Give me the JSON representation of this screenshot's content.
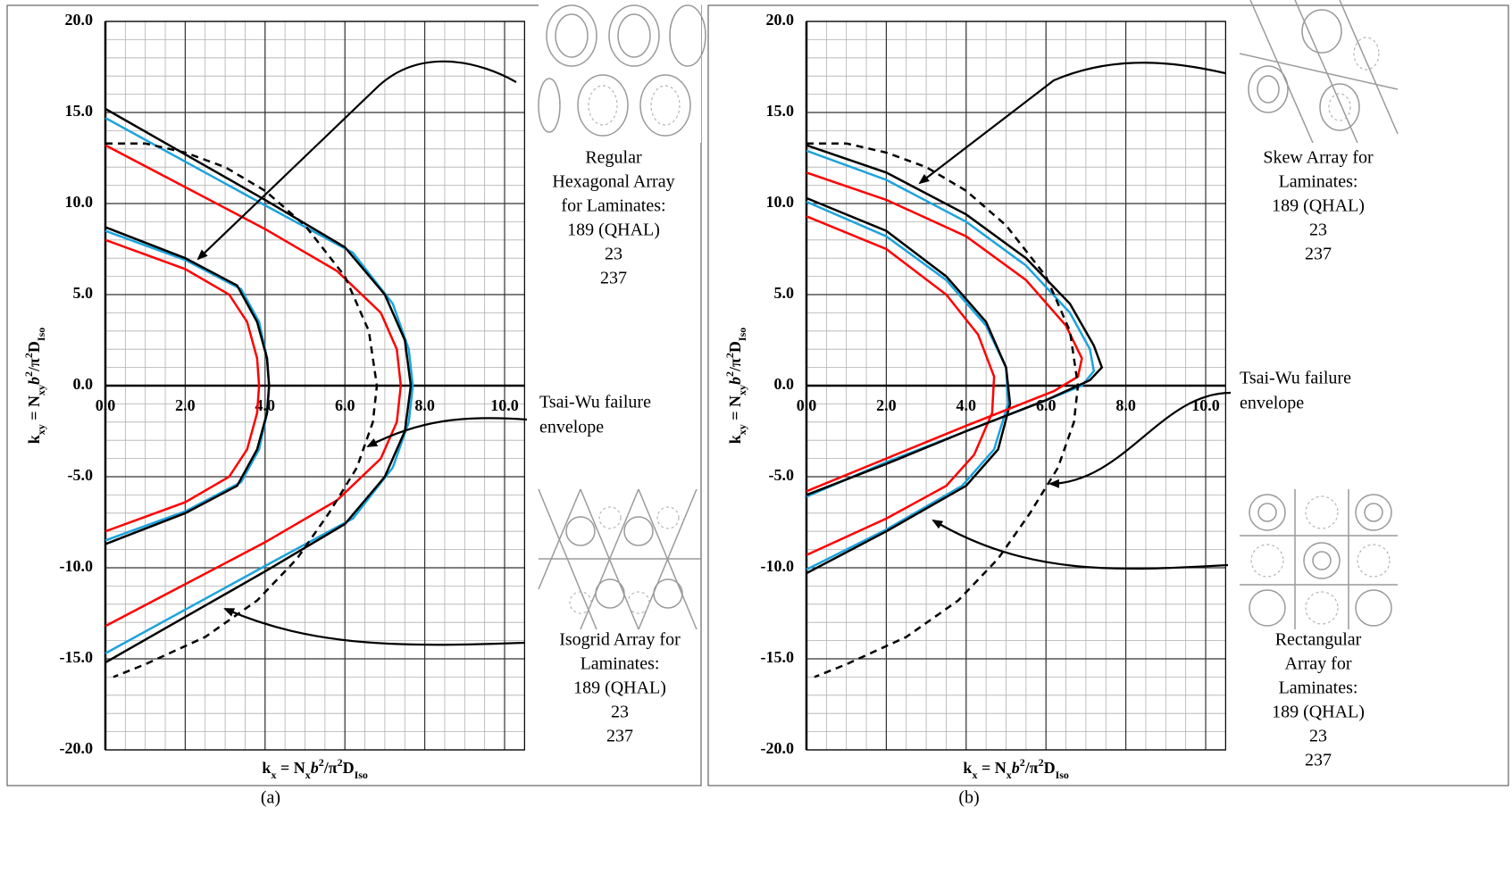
{
  "chart_data": [
    {
      "type": "line",
      "caption": "(a)",
      "xlabel": [
        "k",
        "x",
        " = N",
        "x",
        "b",
        "2",
        "/π",
        "2",
        "D",
        "Iso"
      ],
      "ylabel": [
        "k",
        "xy",
        " = N",
        "xy",
        "b",
        "2",
        "/π",
        "2",
        "D",
        "Iso"
      ],
      "xlim": [
        0,
        10.5
      ],
      "ylim": [
        -20,
        20
      ],
      "xticks": [
        {
          "value": 0,
          "label": "0.0"
        },
        {
          "value": 2,
          "label": "2.0"
        },
        {
          "value": 4,
          "label": "4.0"
        },
        {
          "value": 6,
          "label": "6.0"
        },
        {
          "value": 8,
          "label": "8.0"
        },
        {
          "value": 10,
          "label": "10.0"
        }
      ],
      "yticks": [
        {
          "value": -20,
          "label": "-20.0"
        },
        {
          "value": -15,
          "label": "-15.0"
        },
        {
          "value": -10,
          "label": "-10.0"
        },
        {
          "value": -5,
          "label": "-5.0"
        },
        {
          "value": 0,
          "label": "0.0"
        },
        {
          "value": 5,
          "label": "5.0"
        },
        {
          "value": 10,
          "label": "10.0"
        },
        {
          "value": 15,
          "label": "15.0"
        },
        {
          "value": 20,
          "label": "20.0"
        }
      ],
      "grid": true,
      "minor_xstep": 0.5,
      "minor_ystep": 1,
      "series": [
        {
          "color": "#ff0000",
          "x": [
            0,
            2,
            4,
            5.8,
            6.9,
            7.3,
            7.4,
            7.3,
            6.9,
            5.8,
            4,
            2,
            0
          ],
          "values": [
            13.2,
            10.9,
            8.6,
            6.3,
            4,
            2,
            0,
            -2,
            -4,
            -6.3,
            -8.6,
            -10.9,
            -13.2
          ]
        },
        {
          "color": "#1ca3dc",
          "x": [
            0,
            4,
            6.2,
            7.2,
            7.6,
            7.7,
            7.6,
            7.2,
            6.2,
            4,
            0
          ],
          "values": [
            14.7,
            9.9,
            7.3,
            4.5,
            2,
            0,
            -2,
            -4.5,
            -7.3,
            -9.9,
            -14.7
          ]
        },
        {
          "color": "#000000",
          "x": [
            0,
            2,
            4,
            6,
            7,
            7.5,
            7.65,
            7.5,
            7,
            6,
            4,
            2,
            0
          ],
          "values": [
            15.2,
            12.7,
            10.2,
            7.6,
            5,
            2.5,
            0,
            -2.5,
            -5,
            -7.6,
            -10.2,
            -12.7,
            -15.2
          ]
        },
        {
          "color": "#ff0000",
          "x": [
            0,
            2,
            3.1,
            3.55,
            3.8,
            3.85,
            3.8,
            3.55,
            3.1,
            2,
            0
          ],
          "values": [
            8,
            6.4,
            5,
            3.5,
            1.5,
            0,
            -1.5,
            -3.5,
            -5,
            -6.4,
            -8
          ]
        },
        {
          "color": "#1ca3dc",
          "x": [
            0,
            2,
            3.4,
            3.85,
            4.05,
            4.1,
            4.05,
            3.85,
            3.4,
            2,
            0
          ],
          "values": [
            8.5,
            6.9,
            5.3,
            3.5,
            1.5,
            0,
            -1.5,
            -3.5,
            -5.3,
            -6.9,
            -8.5
          ]
        },
        {
          "color": "#000000",
          "x": [
            0,
            2,
            3.3,
            3.8,
            4.05,
            4.1,
            4.05,
            3.8,
            3.3,
            2,
            0
          ],
          "values": [
            8.7,
            7,
            5.5,
            3.5,
            1.5,
            0,
            -1.5,
            -3.5,
            -5.5,
            -7,
            -8.7
          ]
        },
        {
          "color": "#000000",
          "dashed": true,
          "x": [
            0,
            1,
            2,
            3,
            4,
            5,
            6,
            6.6,
            6.8,
            6.7,
            6.3,
            5.6,
            4.8,
            3.8,
            2.5,
            1,
            0.2
          ],
          "values": [
            13.3,
            13.3,
            12.8,
            12,
            10.7,
            8.8,
            6,
            3,
            0,
            -2,
            -4.5,
            -7,
            -9.5,
            -11.8,
            -13.8,
            -15.3,
            -16
          ]
        }
      ],
      "legend_top": {
        "lines": [
          "Regular",
          "Hexagonal Array",
          "for Laminates:"
        ],
        "entries": [
          {
            "text": "189 (QHAL)",
            "color": "#000000"
          },
          {
            "text": "23",
            "color": "#1ca3dc"
          },
          {
            "text": "237",
            "color": "#ff0000"
          }
        ]
      },
      "envelope_note": [
        "Tsai-Wu failure",
        "envelope"
      ],
      "legend_bottom": {
        "lines": [
          "Isogrid Array for",
          "Laminates:"
        ],
        "entries": [
          {
            "text": "189 (QHAL)",
            "color": "#000000"
          },
          {
            "text": "23",
            "color": "#1ca3dc"
          },
          {
            "text": "237",
            "color": "#ff0000"
          }
        ]
      }
    },
    {
      "type": "line",
      "caption": "(b)",
      "xlabel": [
        "k",
        "x",
        " = N",
        "x",
        "b",
        "2",
        "/π",
        "2",
        "D",
        "Iso"
      ],
      "ylabel": [
        "k",
        "xy",
        " = N",
        "xy",
        "b",
        "2",
        "/π",
        "2",
        "D",
        "Iso"
      ],
      "xlim": [
        0,
        10.5
      ],
      "ylim": [
        -20,
        20
      ],
      "xticks": [
        {
          "value": 0,
          "label": "0.0"
        },
        {
          "value": 2,
          "label": "2.0"
        },
        {
          "value": 4,
          "label": "4.0"
        },
        {
          "value": 6,
          "label": "6.0"
        },
        {
          "value": 8,
          "label": "8.0"
        },
        {
          "value": 10,
          "label": "10.0"
        }
      ],
      "yticks": [
        {
          "value": -20,
          "label": "-20.0"
        },
        {
          "value": -15,
          "label": "-15.0"
        },
        {
          "value": -10,
          "label": "-10.0"
        },
        {
          "value": -5,
          "label": "-5.0"
        },
        {
          "value": 0,
          "label": "0.0"
        },
        {
          "value": 5,
          "label": "5.0"
        },
        {
          "value": 10,
          "label": "10.0"
        },
        {
          "value": 15,
          "label": "15.0"
        },
        {
          "value": 20,
          "label": "20.0"
        }
      ],
      "grid": true,
      "minor_xstep": 0.5,
      "minor_ystep": 1,
      "series": [
        {
          "color": "#ff0000",
          "x": [
            0,
            2,
            3.5,
            4.3,
            4.7,
            4.65,
            4.2,
            3.5,
            2,
            0
          ],
          "values": [
            9.3,
            7.5,
            5,
            2.8,
            0.5,
            -1.5,
            -3.8,
            -5.5,
            -7.3,
            -9.3
          ]
        },
        {
          "color": "#1ca3dc",
          "x": [
            0,
            2,
            3.5,
            4.5,
            5,
            5.05,
            4.7,
            3.9,
            2,
            0
          ],
          "values": [
            10.1,
            8.2,
            5.8,
            3.3,
            1,
            -1,
            -3.5,
            -5.5,
            -7.9,
            -10.1
          ]
        },
        {
          "color": "#000000",
          "x": [
            0,
            2,
            3.5,
            4.5,
            5,
            5.1,
            4.8,
            4,
            2,
            0
          ],
          "values": [
            10.3,
            8.5,
            6,
            3.5,
            1,
            -1,
            -3.5,
            -5.5,
            -8,
            -10.3
          ]
        },
        {
          "color": "#ff0000",
          "x": [
            0,
            2,
            4,
            5.5,
            6.5,
            6.9,
            6.8,
            6.2,
            4,
            2,
            0
          ],
          "values": [
            11.7,
            10.2,
            8.2,
            5.8,
            3.3,
            1.5,
            0.5,
            -0.3,
            -2.2,
            -4,
            -5.8
          ]
        },
        {
          "color": "#1ca3dc",
          "x": [
            0,
            2,
            4,
            5.5,
            6.6,
            7.1,
            7.2,
            6.9,
            6,
            4,
            2,
            0
          ],
          "values": [
            12.9,
            11.3,
            9,
            6.6,
            4,
            2,
            0.8,
            0,
            -0.8,
            -2.5,
            -4.2,
            -6.1
          ]
        },
        {
          "color": "#000000",
          "x": [
            0,
            2,
            4,
            5.5,
            6.6,
            7.2,
            7.4,
            7.1,
            6,
            4,
            2,
            0
          ],
          "values": [
            13.2,
            11.7,
            9.4,
            7,
            4.5,
            2.2,
            1,
            0.3,
            -0.8,
            -2.5,
            -4.3,
            -6
          ]
        },
        {
          "color": "#000000",
          "dashed": true,
          "x": [
            0,
            1,
            2,
            3,
            4,
            5,
            6,
            6.6,
            6.8,
            6.7,
            6.3,
            5.6,
            4.8,
            3.8,
            2.5,
            1,
            0.2
          ],
          "values": [
            13.3,
            13.3,
            12.8,
            12,
            10.7,
            8.8,
            6,
            3,
            0,
            -2,
            -4.5,
            -7,
            -9.5,
            -11.8,
            -13.8,
            -15.3,
            -16
          ]
        }
      ],
      "legend_top": {
        "lines": [
          "Skew Array for",
          "Laminates:"
        ],
        "entries": [
          {
            "text": "189 (QHAL)",
            "color": "#000000"
          },
          {
            "text": "23",
            "color": "#1ca3dc"
          },
          {
            "text": "237",
            "color": "#ff0000"
          }
        ]
      },
      "envelope_note": [
        "Tsai-Wu failure",
        "envelope"
      ],
      "legend_bottom": {
        "lines": [
          "Rectangular",
          "Array for",
          "Laminates:"
        ],
        "entries": [
          {
            "text": "189 (QHAL)",
            "color": "#000000"
          },
          {
            "text": "23",
            "color": "#1ca3dc"
          },
          {
            "text": "237",
            "color": "#ff0000"
          }
        ]
      }
    }
  ]
}
